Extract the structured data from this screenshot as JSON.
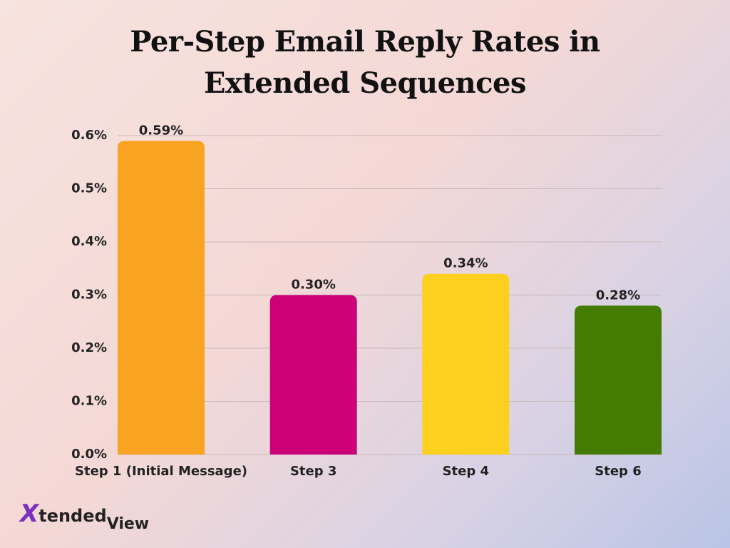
{
  "chart_data": {
    "type": "bar",
    "title": "Per-Step Email Reply Rates in Extended Sequences",
    "categories": [
      "Step 1 (Initial Message)",
      "Step 3",
      "Step 4",
      "Step 6"
    ],
    "values": [
      0.59,
      0.3,
      0.34,
      0.28
    ],
    "value_labels": [
      "0.59%",
      "0.30%",
      "0.34%",
      "0.28%"
    ],
    "colors": [
      "#f9a322",
      "#cc0077",
      "#fdd020",
      "#437c00"
    ],
    "ylim": [
      0,
      0.6
    ],
    "yticks": [
      {
        "value": 0,
        "label": "0.0%"
      },
      {
        "value": 0.1,
        "label": "0.1%"
      },
      {
        "value": 0.2,
        "label": "0.2%"
      },
      {
        "value": 0.3,
        "label": "0.3%"
      },
      {
        "value": 0.4,
        "label": "0.4%"
      },
      {
        "value": 0.5,
        "label": "0.5%"
      },
      {
        "value": 0.6,
        "label": "0.6%"
      }
    ],
    "grid": true
  },
  "brand": {
    "mark": "X",
    "name": "tended",
    "suffix": "View"
  }
}
